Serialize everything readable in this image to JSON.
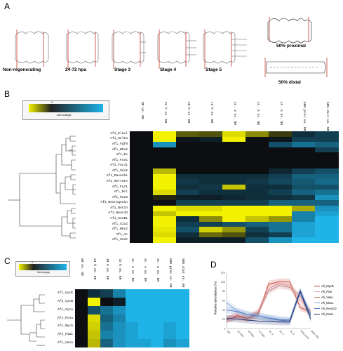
{
  "panel_letters": {
    "a": "A",
    "b": "B",
    "c": "C",
    "d": "D"
  },
  "panel_a": {
    "stages": [
      "Non-regenerating",
      "24-72 hpa",
      "Stage 3",
      "Stage 4",
      "Stage 5"
    ],
    "proximal_label": "50% proximal",
    "distal_label": "50% distal"
  },
  "colorbar": {
    "label": "fold change",
    "tick": "0"
  },
  "panel_b": {
    "columns": [
      "NR vs. NR",
      "24 h vs. NR",
      "48 h vs. NR",
      "72 h vs. NR",
      "st. 3 vs. NR",
      "st. 4 vs. NR",
      "st. 5 vs. NR",
      "50% prox vs. NR",
      "50% dist vs. NR"
    ],
    "genes": [
      "Afi_Elavl",
      "Afi_Delta",
      "Afi_Fgf9",
      "Afi_Nhx2",
      "Afi_Ex",
      "Afi_FoxC",
      "Afi_FoxJ1",
      "Afi_Sox2",
      "Afi_Musashi",
      "Afi_Serrate",
      "Afi_Fuz1",
      "Afi_Ncl",
      "Afi_Pax6",
      "Afi_Neurogenin",
      "Afi_Notch",
      "Afi_NeuroD",
      "Afi_SoxB1",
      "Afi_Six2",
      "Afi_Nkx2",
      "Afi_Ac",
      "Afi_SoxC"
    ],
    "values": [
      [
        0,
        1.0,
        0.35,
        0.3,
        0.9,
        0.55,
        0.2,
        -0.2,
        -0.3
      ],
      [
        0,
        1.0,
        -0.05,
        -0.1,
        1.0,
        0.0,
        -0.05,
        -0.3,
        -0.3
      ],
      [
        0,
        -0.8,
        0.0,
        0.0,
        0.0,
        0.0,
        -0.4,
        -0.6,
        -0.5
      ],
      [
        0,
        0,
        0,
        0,
        0,
        0,
        0,
        0,
        -0.3
      ],
      [
        0,
        0,
        0,
        0,
        0,
        0,
        0,
        0,
        0
      ],
      [
        0,
        0,
        0,
        0,
        0,
        0,
        0,
        0,
        0
      ],
      [
        0,
        0,
        0,
        0,
        0,
        0,
        0,
        0,
        0
      ],
      [
        0,
        0.75,
        0.0,
        0.0,
        0.0,
        0.0,
        -0.15,
        -0.3,
        -0.4
      ],
      [
        0,
        1.0,
        -0.2,
        -0.2,
        -0.2,
        -0.2,
        -0.3,
        -0.5,
        -0.5
      ],
      [
        0,
        1.0,
        -0.25,
        -0.2,
        -0.2,
        -0.25,
        -0.35,
        -0.45,
        -0.55
      ],
      [
        0,
        1.0,
        -0.2,
        -0.25,
        0.8,
        -0.2,
        -0.2,
        -0.4,
        -0.4
      ],
      [
        0,
        0.9,
        -0.3,
        -0.2,
        -0.2,
        -0.2,
        -0.3,
        -0.5,
        -0.6
      ],
      [
        0,
        0.1,
        -0.1,
        -0.1,
        -0.15,
        -0.2,
        -0.2,
        -0.25,
        -0.8
      ],
      [
        0,
        0.0,
        -0.3,
        -0.3,
        -0.3,
        -0.3,
        -0.5,
        -0.5,
        -0.5
      ],
      [
        0,
        1.0,
        0.9,
        0.9,
        1.0,
        1.0,
        1.0,
        0.7,
        -0.8
      ],
      [
        0,
        0.8,
        1.0,
        1.0,
        1.0,
        1.0,
        1.0,
        -0.7,
        -0.9
      ],
      [
        0,
        1.0,
        -0.2,
        0.55,
        1.0,
        0.8,
        0.6,
        -0.7,
        -1.0
      ],
      [
        0,
        1.0,
        -0.3,
        -0.3,
        -0.4,
        -0.5,
        -0.6,
        -0.9,
        -1.0
      ],
      [
        0,
        0.95,
        -0.4,
        0.85,
        0.6,
        -0.3,
        -0.6,
        -0.9,
        -1.0
      ],
      [
        0,
        0.9,
        -0.2,
        0.4,
        0.3,
        -0.2,
        -0.3,
        -0.9,
        -1.0
      ],
      [
        0,
        1.0,
        -0.1,
        -0.1,
        -0.1,
        -0.4,
        -0.8,
        -1.0,
        -1.0
      ]
    ]
  },
  "panel_c": {
    "columns": [
      "NR vs. NR",
      "24 h vs. NR",
      "48 h vs. NR",
      "72 h vs. NR",
      "st. 3 vs. NR",
      "st. 4 vs. NR",
      "st. 5 vs. NR",
      "50% prox vs. NR",
      "50% dist vs. NR"
    ],
    "genes": [
      "Afi_CycE",
      "Afi_CycB",
      "Afi_CycA",
      "Afi_Pcna",
      "Afi_Mycb",
      "Afi_Piwi",
      "Afi_Vasa"
    ],
    "values": [
      [
        0,
        -0.2,
        -0.3,
        -0.7,
        -1.0,
        -1.0,
        -1.0,
        -1.0,
        -1.0
      ],
      [
        0,
        1.0,
        0.0,
        -0.1,
        -1.0,
        -1.0,
        -1.0,
        -1.0,
        -1.0
      ],
      [
        0,
        -0.4,
        -0.6,
        -0.8,
        -1.0,
        -1.0,
        -1.0,
        -1.0,
        -1.0
      ],
      [
        0,
        0.9,
        -0.5,
        -0.7,
        -1.0,
        -1.0,
        -1.0,
        -1.0,
        -1.0
      ],
      [
        0,
        0.85,
        -0.6,
        -0.8,
        -0.9,
        -1.0,
        -1.0,
        -0.9,
        -1.0
      ],
      [
        0,
        0.8,
        -0.7,
        -0.8,
        -0.9,
        -1.0,
        -1.0,
        -0.9,
        -1.0
      ],
      [
        0,
        0.75,
        -0.5,
        -0.8,
        -0.9,
        -0.9,
        -1.0,
        -0.8,
        -0.9
      ]
    ]
  },
  "chart_data": {
    "type": "line",
    "title": "",
    "ylabel": "Relative abundance (%)",
    "xlabel": "",
    "x": [
      "NR",
      "24 hpa",
      "48 hpa",
      "72 hpa",
      "St. 3",
      "St. 4",
      "St. 5",
      "50% prox",
      "50% dist"
    ],
    "ylim": [
      0,
      120
    ],
    "yticks": [
      "0",
      "20",
      "40",
      "60",
      "80",
      "100",
      "120"
    ],
    "series": [
      {
        "name": "Afi_MycB",
        "color": "#c0392b",
        "values": [
          18,
          28,
          22,
          30,
          95,
          100,
          100,
          45,
          35
        ]
      },
      {
        "name": "Afi_Piwi",
        "color": "#e8a0a0",
        "values": [
          20,
          26,
          20,
          38,
          85,
          97,
          90,
          60,
          38
        ]
      },
      {
        "name": "Afi_Vasa",
        "color": "#c07878",
        "values": [
          20,
          24,
          22,
          34,
          80,
          92,
          88,
          70,
          30
        ]
      },
      {
        "name": "Afi_ElavL",
        "color": "#7fa7d9",
        "values": [
          55,
          38,
          30,
          28,
          24,
          20,
          18,
          82,
          30
        ]
      },
      {
        "name": "Afi_NeuroD",
        "color": "#4e79c4",
        "values": [
          40,
          36,
          30,
          26,
          22,
          18,
          16,
          78,
          28
        ]
      },
      {
        "name": "Afi_Pax6",
        "color": "#1a2e6e",
        "values": [
          22,
          20,
          18,
          16,
          15,
          14,
          14,
          80,
          20
        ]
      }
    ]
  }
}
